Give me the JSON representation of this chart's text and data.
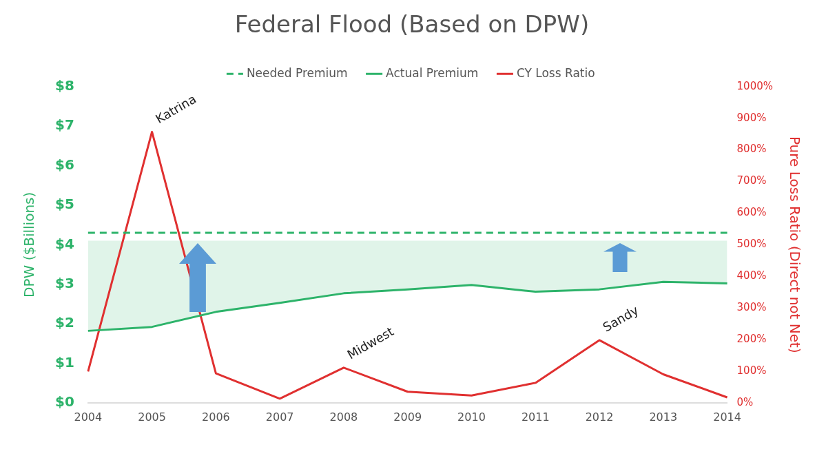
{
  "chart_data": {
    "type": "line",
    "title": "Federal Flood (Based on DPW)",
    "ylabel": "DPW ($Billions)",
    "y2label": "Pure Loss Ratio (Direct not Net)",
    "categories": [
      "2004",
      "2005",
      "2006",
      "2007",
      "2008",
      "2009",
      "2010",
      "2011",
      "2012",
      "2013",
      "2014"
    ],
    "series": [
      {
        "name": "Needed Premium",
        "color": "#2db36a",
        "line_style": "dashed",
        "values": [
          4.3,
          4.3,
          4.3,
          4.3,
          4.3,
          4.3,
          4.3,
          4.3,
          4.3,
          4.3,
          4.3
        ]
      },
      {
        "name": "Actual Premium",
        "color": "#2db36a",
        "values": [
          1.82,
          1.92,
          2.3,
          2.53,
          2.77,
          2.87,
          2.98,
          2.81,
          2.87,
          3.06,
          3.02
        ],
        "lower": [
          1.82,
          1.92,
          2.3,
          2.53,
          2.77,
          2.87,
          2.98,
          2.81,
          2.87,
          3.06,
          3.02
        ],
        "upper": [
          4.1,
          4.1,
          4.1,
          4.1,
          4.1,
          4.1,
          4.1,
          4.1,
          4.1,
          4.1,
          4.1
        ]
      },
      {
        "name": "CY Loss Ratio",
        "color": "#e03030",
        "axis": "y2",
        "values": [
          99,
          857,
          93,
          13,
          111,
          35,
          23,
          63,
          198,
          90,
          17
        ]
      }
    ],
    "ylim": [
      0,
      8
    ],
    "yticks": [
      {
        "value": 0,
        "label": "$0"
      },
      {
        "value": 1,
        "label": "$1"
      },
      {
        "value": 2,
        "label": "$2"
      },
      {
        "value": 3,
        "label": "$3"
      },
      {
        "value": 4,
        "label": "$4"
      },
      {
        "value": 5,
        "label": "$5"
      },
      {
        "value": 6,
        "label": "$6"
      },
      {
        "value": 7,
        "label": "$7"
      },
      {
        "value": 8,
        "label": "$8"
      }
    ],
    "y2lim": [
      0,
      1000
    ],
    "y2ticks": [
      {
        "value": 0,
        "label": "0%"
      },
      {
        "value": 100,
        "label": "100%"
      },
      {
        "value": 200,
        "label": "200%"
      },
      {
        "value": 300,
        "label": "300%"
      },
      {
        "value": 400,
        "label": "400%"
      },
      {
        "value": 500,
        "label": "500%"
      },
      {
        "value": 600,
        "label": "600%"
      },
      {
        "value": 700,
        "label": "700%"
      },
      {
        "value": 800,
        "label": "800%"
      },
      {
        "value": 900,
        "label": "900%"
      },
      {
        "value": 1000,
        "label": "1000%"
      }
    ],
    "annotations": [
      {
        "text": "Katrina",
        "x": "2005",
        "y": 6.856
      },
      {
        "text": "Midwest",
        "x": "2008",
        "y": 0.888
      },
      {
        "text": "Sandy",
        "x": "2012",
        "y": 1.584
      }
    ],
    "legend": "top",
    "marker": "none",
    "grid": false
  }
}
